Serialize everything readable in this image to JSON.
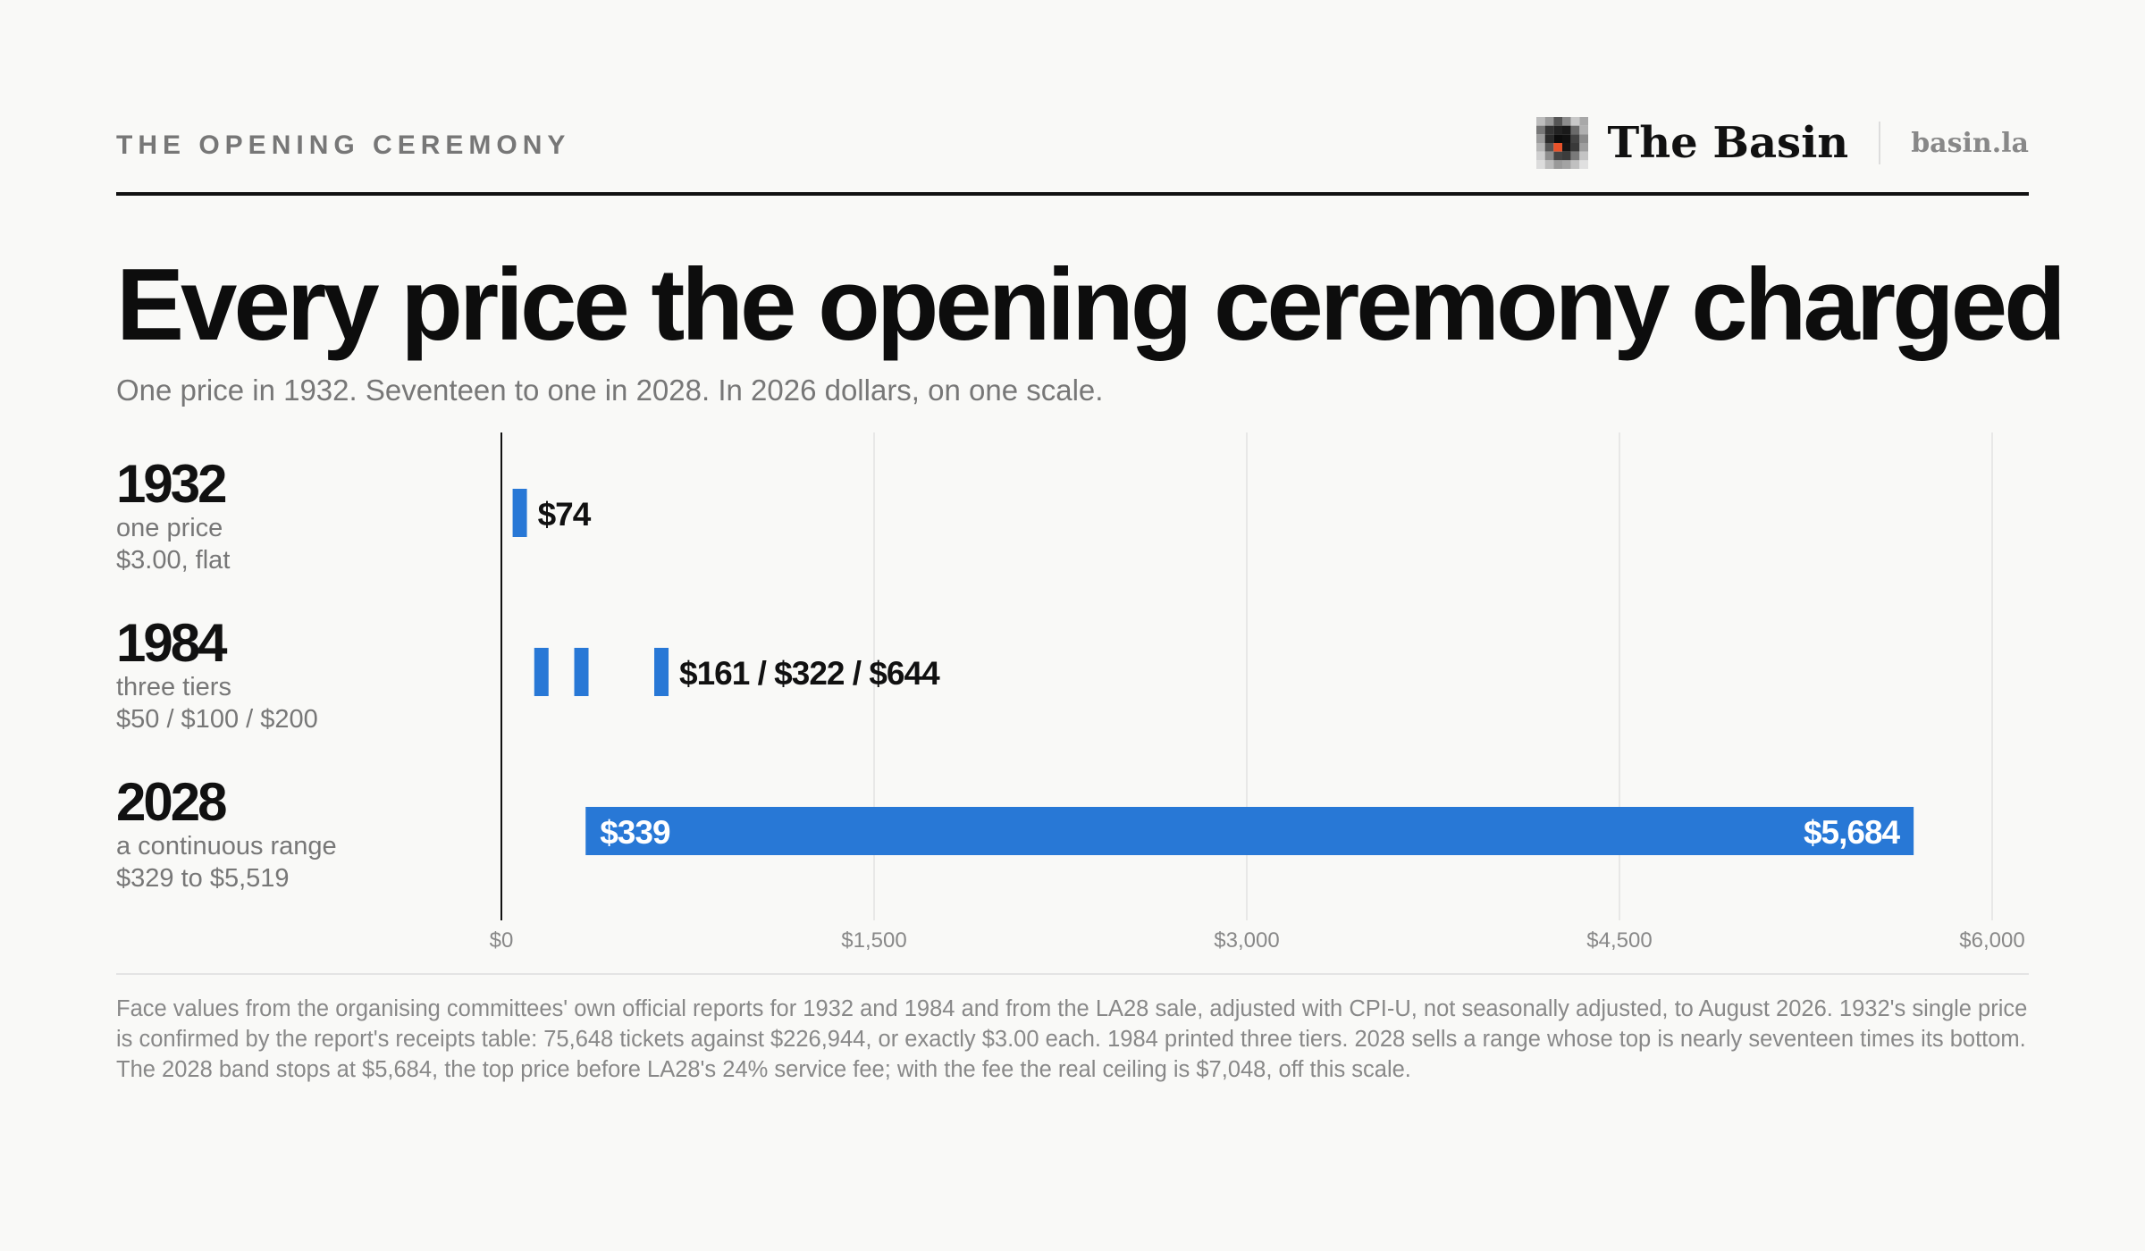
{
  "header": {
    "kicker": "THE OPENING CEREMONY",
    "brand_name": "The Basin",
    "brand_url": "basin.la",
    "brand_logo_icon": "pixel-mosaic-logo-icon"
  },
  "title": "Every price the opening ceremony charged",
  "subtitle": "One price in 1932. Seventeen to one in 2028. In 2026 dollars, on one scale.",
  "rows": [
    {
      "year": "1932",
      "desc": "one price",
      "price": "$3.00, flat"
    },
    {
      "year": "1984",
      "desc": "three tiers",
      "price": "$50 / $100 / $200"
    },
    {
      "year": "2028",
      "desc": "a continuous range",
      "price": "$329 to $5,519"
    }
  ],
  "chart_data": {
    "type": "bar",
    "xlim": [
      0,
      6000
    ],
    "x_ticks": [
      0,
      1500,
      3000,
      4500,
      6000
    ],
    "x_tick_labels": [
      "$0",
      "$1,500",
      "$3,000",
      "$4,500",
      "$6,000"
    ],
    "grid": true,
    "categories": [
      "1932",
      "1984",
      "2028"
    ],
    "points": [
      {
        "category": "1932",
        "values": [
          74
        ],
        "label": "$74"
      },
      {
        "category": "1984",
        "values": [
          161,
          322,
          644
        ],
        "label": "$161 / $322 / $644"
      }
    ],
    "ranges": [
      {
        "category": "2028",
        "min": 339,
        "max": 5684,
        "min_label": "$339",
        "max_label": "$5,684"
      }
    ],
    "bar_color": "#2878d6"
  },
  "note": "Face values from the organising committees' own official reports for 1932 and 1984 and from the LA28 sale, adjusted with CPI-U, not seasonally adjusted, to August 2026. 1932's single price is confirmed by the report's receipts table: 75,648 tickets against $226,944, or exactly $3.00 each. 1984 printed three tiers. 2028 sells a range whose top is nearly seventeen times its bottom. The 2028 band stops at $5,684, the top price before LA28's 24% service fee; with the fee the real ceiling is $7,048, off this scale."
}
